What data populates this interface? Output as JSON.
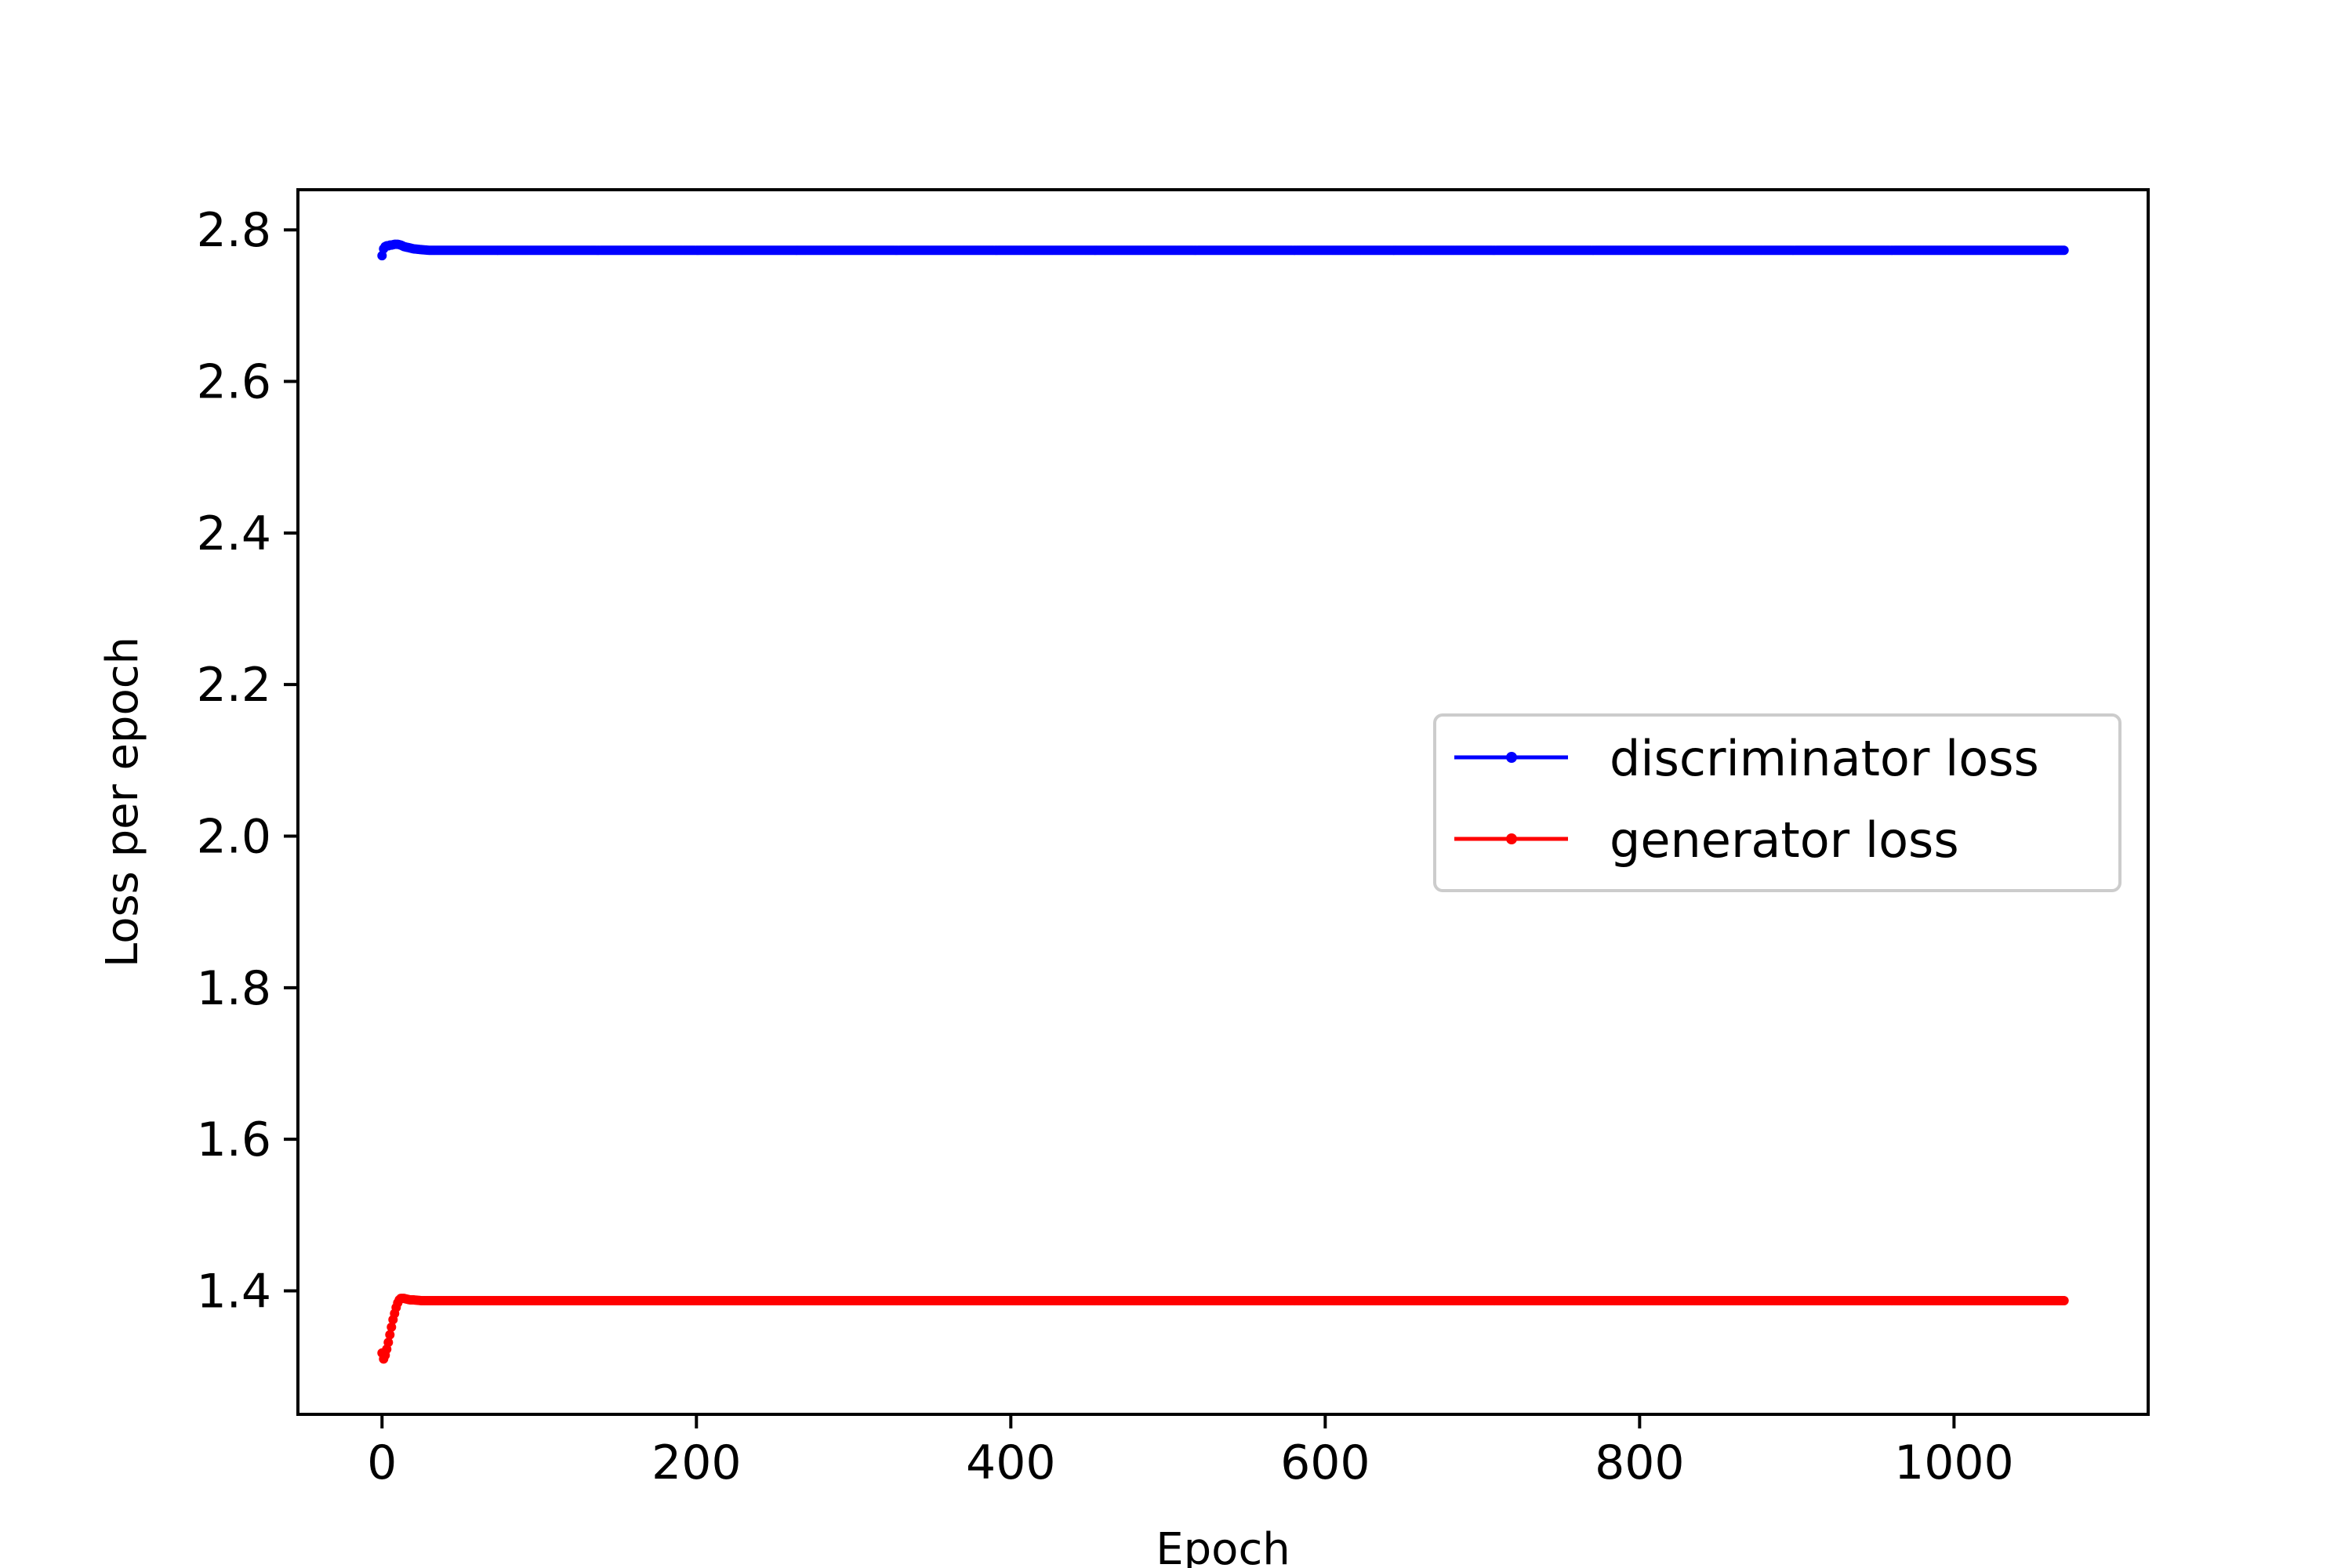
{
  "chart_data": {
    "type": "line",
    "title": "",
    "xlabel": "Epoch",
    "ylabel": "Loss per epoch",
    "xlim": [
      -53.5,
      1123.5
    ],
    "ylim": [
      1.237,
      2.853
    ],
    "xticks": [
      0,
      200,
      400,
      600,
      800,
      1000
    ],
    "xtick_labels": [
      "0",
      "200",
      "400",
      "600",
      "800",
      "1000"
    ],
    "yticks": [
      1.4,
      1.6,
      1.8,
      2.0,
      2.2,
      2.4,
      2.6,
      2.8
    ],
    "ytick_labels": [
      "1.4",
      "1.6",
      "1.8",
      "2.0",
      "2.2",
      "2.4",
      "2.6",
      "2.8"
    ],
    "grid": false,
    "legend_position": "center-right",
    "series": [
      {
        "name": "discriminator loss",
        "color": "#0000ff",
        "marker": "dot",
        "x": [
          0,
          1,
          2,
          3,
          4,
          5,
          6,
          8,
          10,
          12,
          14,
          16,
          18,
          20,
          25,
          30,
          40,
          50,
          75,
          100,
          200,
          300,
          400,
          500,
          600,
          700,
          800,
          900,
          1000,
          1070
        ],
        "y": [
          2.766,
          2.775,
          2.778,
          2.779,
          2.779,
          2.78,
          2.78,
          2.781,
          2.781,
          2.78,
          2.778,
          2.777,
          2.776,
          2.775,
          2.774,
          2.773,
          2.773,
          2.773,
          2.773,
          2.773,
          2.773,
          2.773,
          2.773,
          2.773,
          2.773,
          2.773,
          2.773,
          2.773,
          2.773,
          2.773
        ]
      },
      {
        "name": "generator loss",
        "color": "#ff0000",
        "marker": "dot",
        "x": [
          0,
          1,
          2,
          3,
          4,
          5,
          6,
          7,
          8,
          9,
          10,
          11,
          12,
          14,
          16,
          18,
          20,
          25,
          30,
          40,
          50,
          75,
          100,
          200,
          300,
          400,
          500,
          600,
          700,
          800,
          900,
          1000,
          1070
        ],
        "y": [
          1.318,
          1.31,
          1.315,
          1.323,
          1.332,
          1.342,
          1.352,
          1.362,
          1.37,
          1.378,
          1.384,
          1.388,
          1.39,
          1.39,
          1.389,
          1.388,
          1.388,
          1.387,
          1.387,
          1.387,
          1.387,
          1.387,
          1.387,
          1.387,
          1.387,
          1.387,
          1.387,
          1.387,
          1.387,
          1.387,
          1.387,
          1.387,
          1.387
        ]
      }
    ]
  }
}
